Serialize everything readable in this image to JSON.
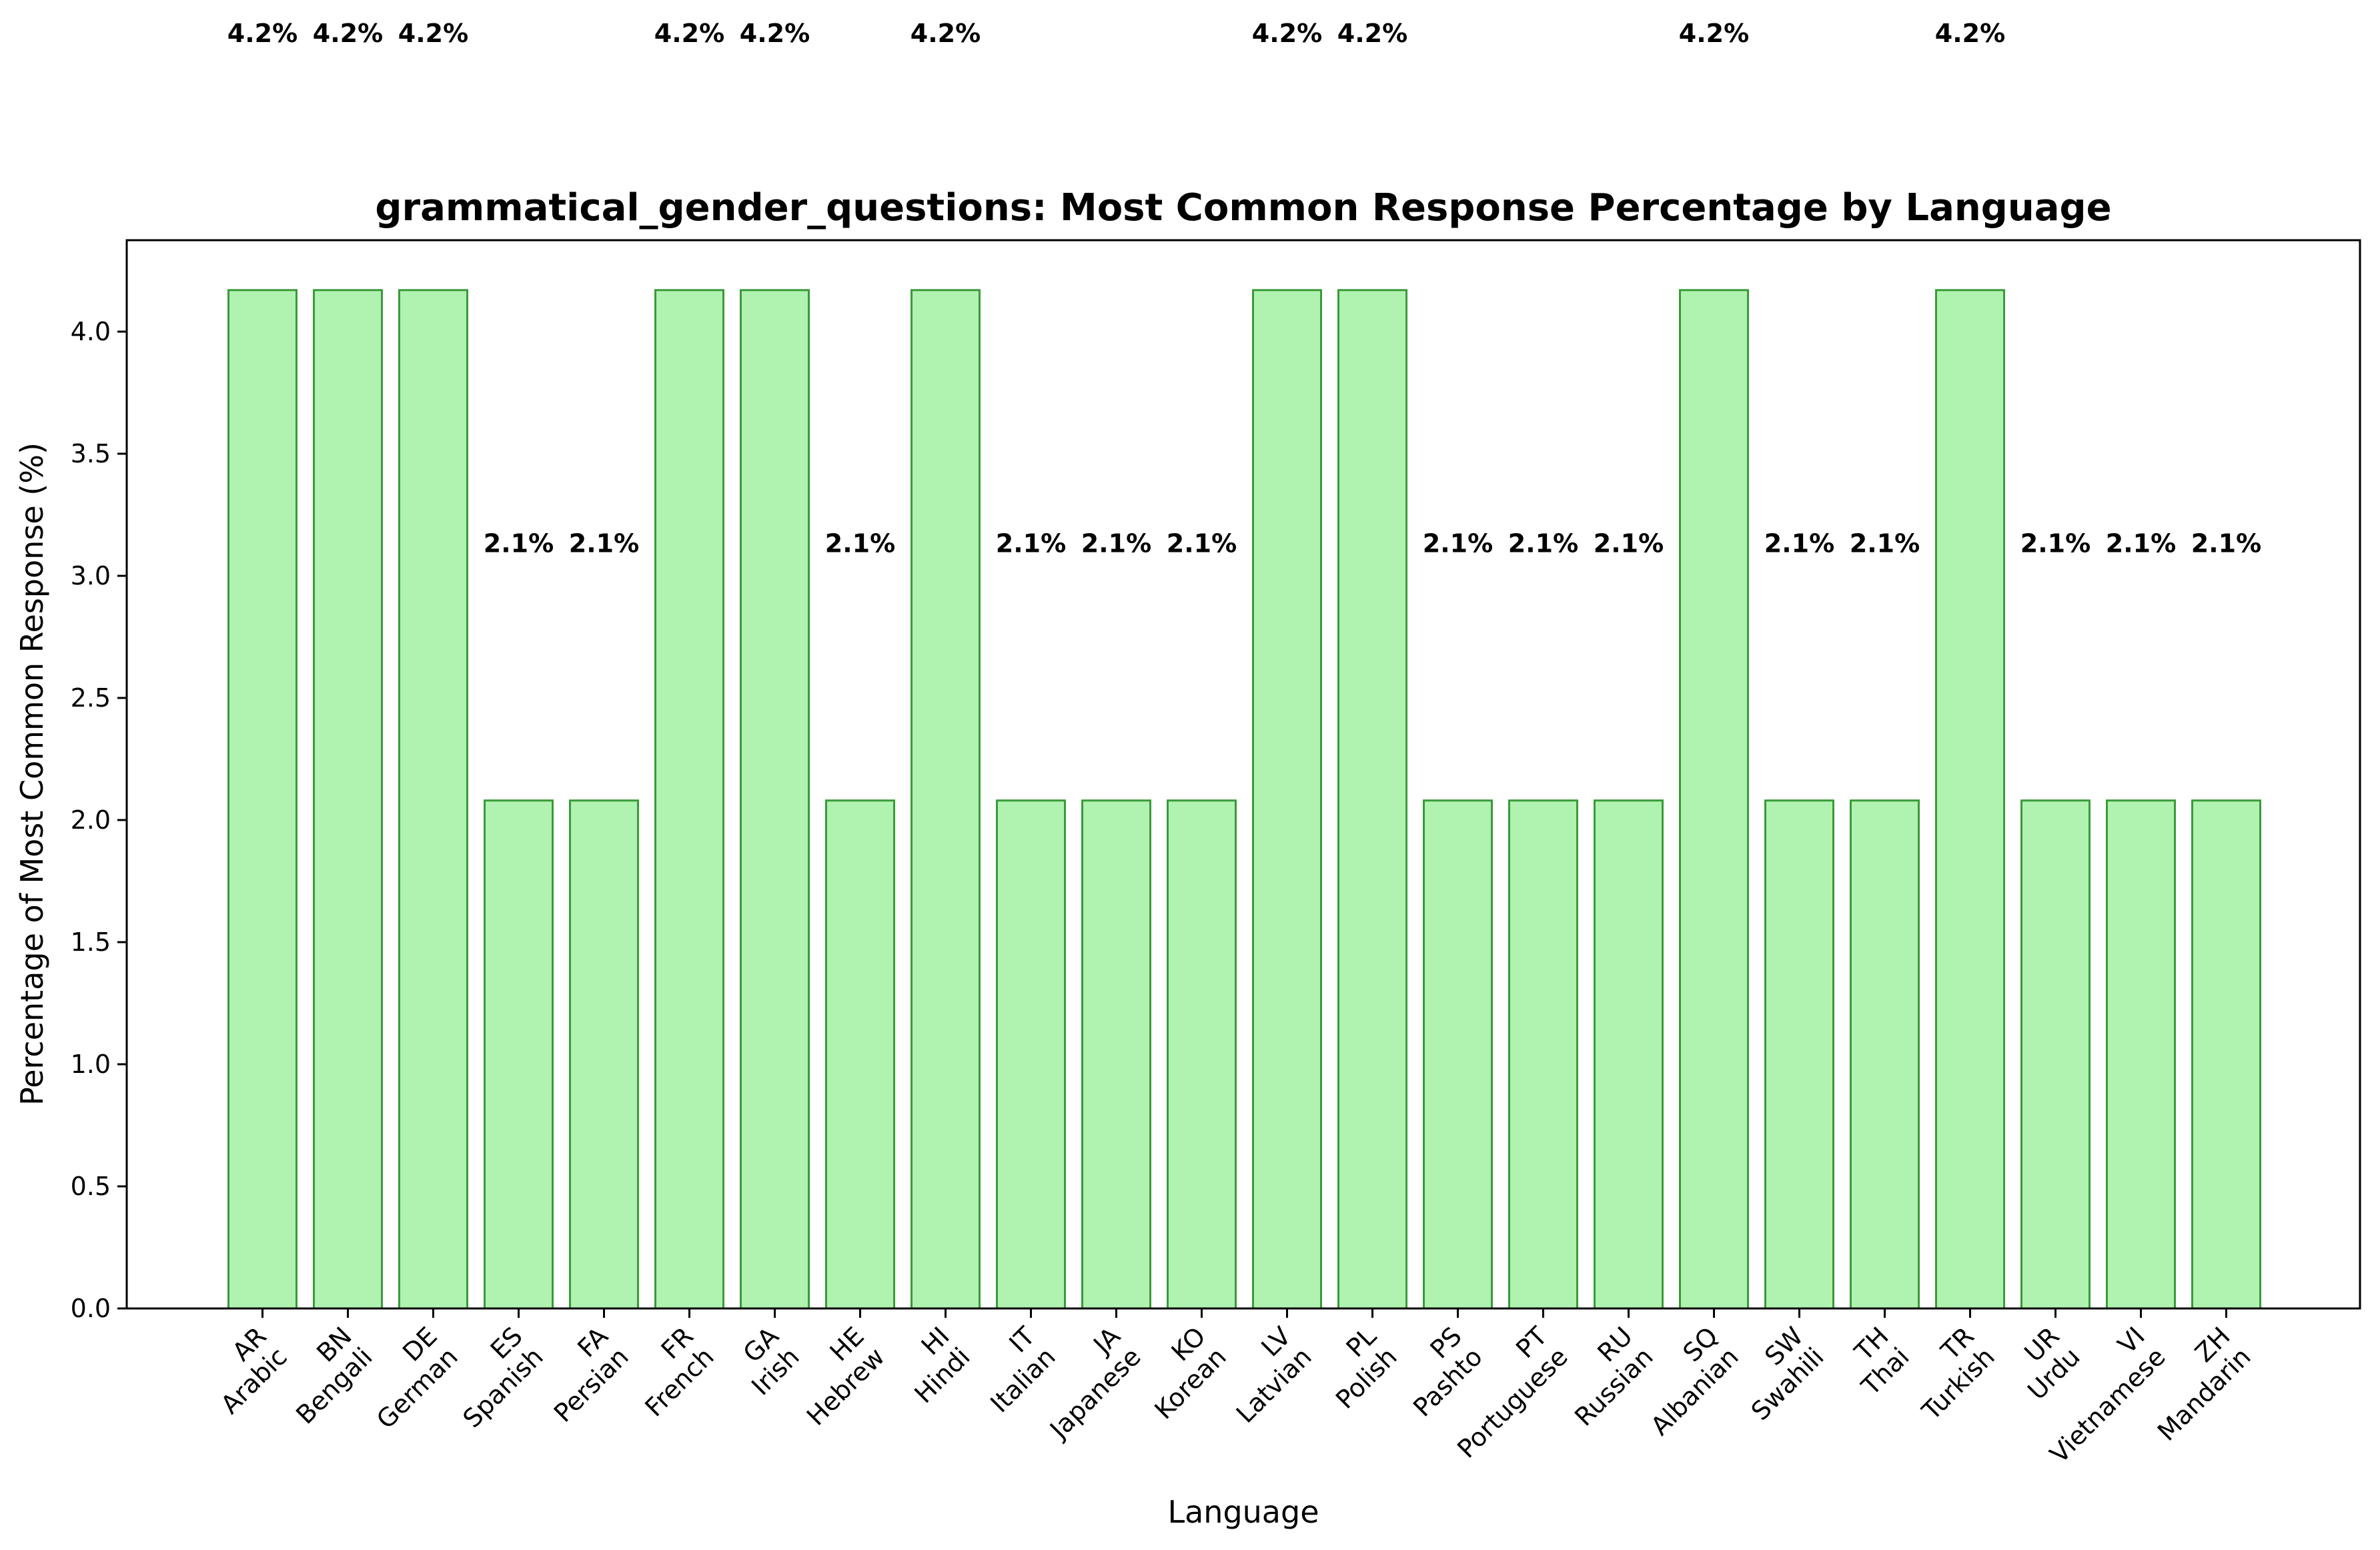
{
  "chart_data": {
    "type": "bar",
    "title": "grammatical_gender_questions: Most Common Response Percentage by Language",
    "xlabel": "Language",
    "ylabel": "Percentage of Most Common Response (%)",
    "ylim": [
      0,
      4.375
    ],
    "yticks": [
      "0.0",
      "0.5",
      "1.0",
      "1.5",
      "2.0",
      "2.5",
      "3.0",
      "3.5",
      "4.0"
    ],
    "grid": false,
    "bar_color": "#b0f2b0",
    "bar_edge_color": "#3a9a3a",
    "categories": [
      {
        "code": "AR",
        "name": "Arabic",
        "value": 4.17,
        "label": "4.2%"
      },
      {
        "code": "BN",
        "name": "Bengali",
        "value": 4.17,
        "label": "4.2%"
      },
      {
        "code": "DE",
        "name": "German",
        "value": 4.17,
        "label": "4.2%"
      },
      {
        "code": "ES",
        "name": "Spanish",
        "value": 2.08,
        "label": "2.1%"
      },
      {
        "code": "FA",
        "name": "Persian",
        "value": 2.08,
        "label": "2.1%"
      },
      {
        "code": "FR",
        "name": "French",
        "value": 4.17,
        "label": "4.2%"
      },
      {
        "code": "GA",
        "name": "Irish",
        "value": 4.17,
        "label": "4.2%"
      },
      {
        "code": "HE",
        "name": "Hebrew",
        "value": 2.08,
        "label": "2.1%"
      },
      {
        "code": "HI",
        "name": "Hindi",
        "value": 4.17,
        "label": "4.2%"
      },
      {
        "code": "IT",
        "name": "Italian",
        "value": 2.08,
        "label": "2.1%"
      },
      {
        "code": "JA",
        "name": "Japanese",
        "value": 2.08,
        "label": "2.1%"
      },
      {
        "code": "KO",
        "name": "Korean",
        "value": 2.08,
        "label": "2.1%"
      },
      {
        "code": "LV",
        "name": "Latvian",
        "value": 4.17,
        "label": "4.2%"
      },
      {
        "code": "PL",
        "name": "Polish",
        "value": 4.17,
        "label": "4.2%"
      },
      {
        "code": "PS",
        "name": "Pashto",
        "value": 2.08,
        "label": "2.1%"
      },
      {
        "code": "PT",
        "name": "Portuguese",
        "value": 2.08,
        "label": "2.1%"
      },
      {
        "code": "RU",
        "name": "Russian",
        "value": 2.08,
        "label": "2.1%"
      },
      {
        "code": "SQ",
        "name": "Albanian",
        "value": 4.17,
        "label": "4.2%"
      },
      {
        "code": "SW",
        "name": "Swahili",
        "value": 2.08,
        "label": "2.1%"
      },
      {
        "code": "TH",
        "name": "Thai",
        "value": 2.08,
        "label": "2.1%"
      },
      {
        "code": "TR",
        "name": "Turkish",
        "value": 4.17,
        "label": "4.2%"
      },
      {
        "code": "UR",
        "name": "Urdu",
        "value": 2.08,
        "label": "2.1%"
      },
      {
        "code": "VI",
        "name": "Vietnamese",
        "value": 2.08,
        "label": "2.1%"
      },
      {
        "code": "ZH",
        "name": "Mandarin",
        "value": 2.08,
        "label": "2.1%"
      }
    ]
  }
}
